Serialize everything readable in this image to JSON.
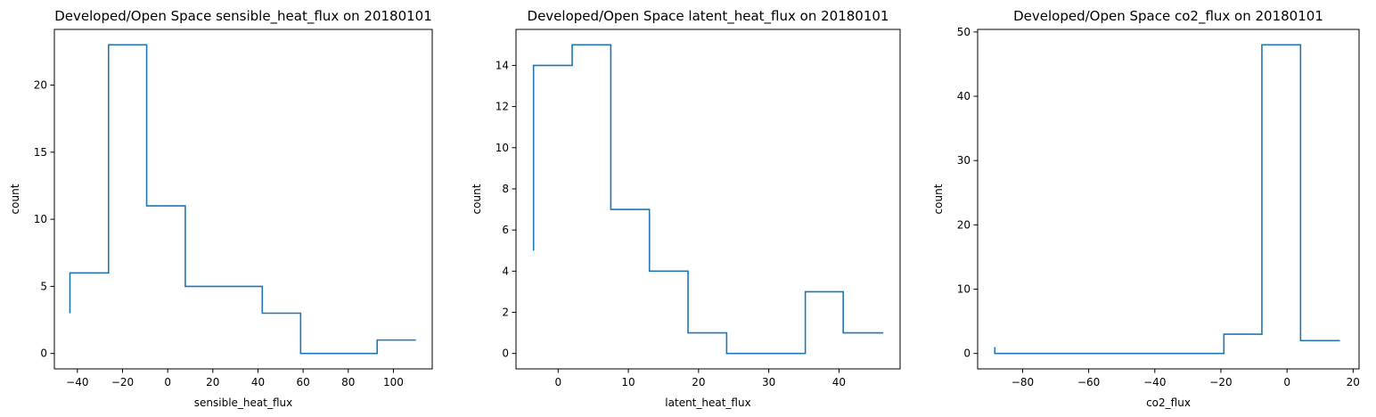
{
  "chart_data": [
    {
      "type": "histogram-step",
      "title": "Developed/Open Space sensible_heat_flux on 20180101",
      "xlabel": "sensible_heat_flux",
      "ylabel": "count",
      "xlim": [
        -50.2,
        117.2
      ],
      "ylim": [
        -1.15,
        24.15
      ],
      "xticks": [
        -40,
        -20,
        0,
        20,
        40,
        60,
        80,
        100
      ],
      "yticks": [
        0,
        5,
        10,
        15,
        20
      ],
      "bin_edges": [
        -43.3,
        -26.2,
        -9.3,
        7.8,
        24.8,
        41.9,
        58.9,
        76.0,
        92.8,
        110.0
      ],
      "counts": [
        6,
        23,
        11,
        5,
        5,
        3,
        0,
        0,
        1
      ],
      "start_value": 3,
      "color": "#1f77b4"
    },
    {
      "type": "histogram-step",
      "title": "Developed/Open Space latent_heat_flux on 20180101",
      "xlabel": "latent_heat_flux",
      "ylabel": "count",
      "xlim": [
        -6.0,
        48.7
      ],
      "ylim": [
        -0.75,
        15.75
      ],
      "xticks": [
        0,
        10,
        20,
        30,
        40
      ],
      "yticks": [
        0,
        2,
        4,
        6,
        8,
        10,
        12,
        14
      ],
      "bin_edges": [
        -3.5,
        2.0,
        7.5,
        13.0,
        18.5,
        24.0,
        29.6,
        35.2,
        40.6,
        46.3
      ],
      "counts": [
        14,
        15,
        7,
        4,
        1,
        0,
        0,
        3,
        1
      ],
      "start_value": 5,
      "color": "#1f77b4"
    },
    {
      "type": "histogram-step",
      "title": "Developed/Open Space co2_flux on 20180101",
      "xlabel": "co2_flux",
      "ylabel": "count",
      "xlim": [
        -93.6,
        21.8
      ],
      "ylim": [
        -2.4,
        50.4
      ],
      "xticks": [
        -80,
        -60,
        -40,
        -20,
        0,
        20
      ],
      "yticks": [
        0,
        10,
        20,
        30,
        40,
        50
      ],
      "bin_edges": [
        -88.4,
        -76.8,
        -65.3,
        -53.8,
        -42.2,
        -30.6,
        -19.1,
        -7.6,
        4.1,
        16.0
      ],
      "counts": [
        0,
        0,
        0,
        0,
        0,
        0,
        3,
        48,
        2
      ],
      "start_value": 1,
      "color": "#1f77b4"
    }
  ]
}
